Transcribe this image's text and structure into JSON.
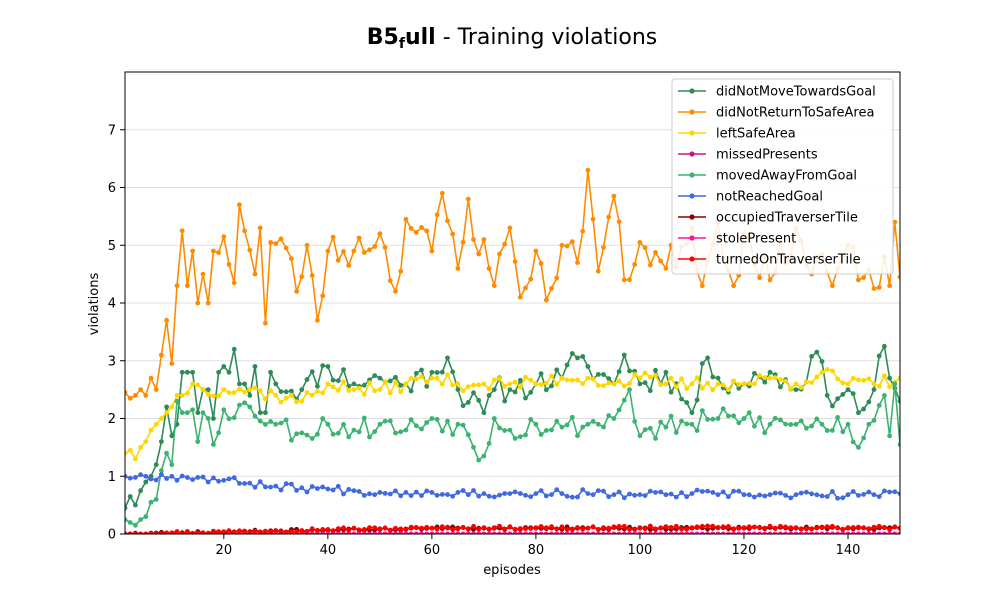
{
  "chart_data": {
    "type": "line",
    "title": {
      "main": "B5",
      "subscript": "f",
      "main_rest": "ull",
      "rest": " - Training violations"
    },
    "xlabel": "episodes",
    "ylabel": "violations",
    "xlim": [
      1,
      150
    ],
    "ylim": [
      0,
      8
    ],
    "xticks": [
      20,
      40,
      60,
      80,
      100,
      120,
      140
    ],
    "yticks": [
      0,
      1,
      2,
      3,
      4,
      5,
      6,
      7
    ],
    "grid": "horizontal",
    "legend_position": "upper right",
    "x_start": 1,
    "x_end": 150,
    "series": [
      {
        "name": "didNotMoveTowardsGoal",
        "color": "#2e8b57",
        "keypoints": [
          [
            1,
            0.45
          ],
          [
            2,
            0.65
          ],
          [
            3,
            0.5
          ],
          [
            4,
            0.75
          ],
          [
            5,
            0.9
          ],
          [
            6,
            1.0
          ],
          [
            7,
            1.2
          ],
          [
            8,
            1.6
          ],
          [
            9,
            2.2
          ],
          [
            10,
            1.7
          ],
          [
            11,
            1.9
          ],
          [
            12,
            2.8
          ],
          [
            13,
            2.8
          ],
          [
            14,
            2.8
          ],
          [
            15,
            2.1
          ],
          [
            16,
            2.5
          ],
          [
            17,
            2.5
          ],
          [
            18,
            2.0
          ],
          [
            19,
            2.8
          ],
          [
            20,
            2.9
          ],
          [
            21,
            2.8
          ],
          [
            22,
            3.2
          ],
          [
            23,
            2.6
          ],
          [
            24,
            2.6
          ],
          [
            25,
            2.4
          ],
          [
            26,
            2.9
          ],
          [
            27,
            2.1
          ],
          [
            28,
            2.1
          ],
          [
            29,
            2.8
          ],
          [
            30,
            2.6
          ],
          [
            35,
            2.5
          ],
          [
            40,
            2.9
          ],
          [
            45,
            2.6
          ],
          [
            50,
            2.7
          ],
          [
            55,
            2.6
          ],
          [
            60,
            2.8
          ],
          [
            63,
            3.05
          ],
          [
            65,
            2.5
          ],
          [
            70,
            2.1
          ],
          [
            72,
            2.5
          ],
          [
            75,
            2.5
          ],
          [
            80,
            2.6
          ],
          [
            85,
            2.7
          ],
          [
            88,
            3.05
          ],
          [
            90,
            2.9
          ],
          [
            95,
            2.6
          ],
          [
            97,
            3.1
          ],
          [
            100,
            2.6
          ],
          [
            105,
            2.8
          ],
          [
            110,
            2.1
          ],
          [
            113,
            3.05
          ],
          [
            115,
            2.7
          ],
          [
            120,
            2.6
          ],
          [
            125,
            2.8
          ],
          [
            130,
            2.5
          ],
          [
            134,
            3.15
          ],
          [
            136,
            2.4
          ],
          [
            140,
            2.5
          ],
          [
            142,
            2.1
          ],
          [
            145,
            2.5
          ],
          [
            147,
            3.25
          ],
          [
            148,
            2.7
          ],
          [
            150,
            2.3
          ]
        ],
        "noise": 0.22,
        "seed": 11
      },
      {
        "name": "didNotReturnToSafeArea",
        "color": "#ff8c00",
        "keypoints": [
          [
            1,
            2.45
          ],
          [
            2,
            2.35
          ],
          [
            3,
            2.4
          ],
          [
            4,
            2.5
          ],
          [
            5,
            2.4
          ],
          [
            6,
            2.7
          ],
          [
            7,
            2.5
          ],
          [
            8,
            3.1
          ],
          [
            9,
            3.7
          ],
          [
            10,
            2.95
          ],
          [
            11,
            4.3
          ],
          [
            12,
            5.25
          ],
          [
            13,
            4.3
          ],
          [
            14,
            4.9
          ],
          [
            15,
            4.0
          ],
          [
            16,
            4.5
          ],
          [
            17,
            4.0
          ],
          [
            18,
            4.9
          ],
          [
            20,
            5.15
          ],
          [
            22,
            4.35
          ],
          [
            23,
            5.7
          ],
          [
            24,
            5.25
          ],
          [
            26,
            4.5
          ],
          [
            27,
            5.3
          ],
          [
            28,
            3.65
          ],
          [
            29,
            5.05
          ],
          [
            32,
            4.95
          ],
          [
            34,
            4.2
          ],
          [
            36,
            5.0
          ],
          [
            38,
            3.7
          ],
          [
            40,
            4.9
          ],
          [
            45,
            4.9
          ],
          [
            50,
            5.2
          ],
          [
            53,
            4.2
          ],
          [
            55,
            5.45
          ],
          [
            60,
            4.9
          ],
          [
            62,
            5.9
          ],
          [
            65,
            4.6
          ],
          [
            67,
            5.8
          ],
          [
            68,
            5.1
          ],
          [
            70,
            5.1
          ],
          [
            72,
            4.3
          ],
          [
            75,
            5.3
          ],
          [
            77,
            4.1
          ],
          [
            80,
            4.9
          ],
          [
            82,
            4.05
          ],
          [
            85,
            5.0
          ],
          [
            88,
            4.7
          ],
          [
            90,
            6.3
          ],
          [
            92,
            4.55
          ],
          [
            95,
            5.85
          ],
          [
            97,
            4.4
          ],
          [
            100,
            5.05
          ],
          [
            105,
            4.6
          ],
          [
            110,
            5.3
          ],
          [
            112,
            4.3
          ],
          [
            115,
            5.4
          ],
          [
            118,
            4.3
          ],
          [
            120,
            5.2
          ],
          [
            125,
            4.4
          ],
          [
            130,
            5.3
          ],
          [
            133,
            4.5
          ],
          [
            135,
            4.85
          ],
          [
            137,
            4.3
          ],
          [
            140,
            5.0
          ],
          [
            142,
            4.4
          ],
          [
            145,
            4.25
          ],
          [
            147,
            4.8
          ],
          [
            148,
            4.3
          ],
          [
            149,
            5.4
          ],
          [
            150,
            4.45
          ]
        ],
        "noise": 0.3,
        "seed": 23
      },
      {
        "name": "leftSafeArea",
        "color": "#ffd700",
        "keypoints": [
          [
            1,
            1.4
          ],
          [
            2,
            1.45
          ],
          [
            3,
            1.3
          ],
          [
            4,
            1.5
          ],
          [
            5,
            1.6
          ],
          [
            6,
            1.8
          ],
          [
            7,
            1.9
          ],
          [
            8,
            2.0
          ],
          [
            9,
            2.1
          ],
          [
            10,
            2.2
          ],
          [
            11,
            2.4
          ],
          [
            12,
            2.4
          ],
          [
            14,
            2.6
          ],
          [
            16,
            2.5
          ],
          [
            20,
            2.5
          ],
          [
            25,
            2.5
          ],
          [
            30,
            2.4
          ],
          [
            35,
            2.3
          ],
          [
            40,
            2.6
          ],
          [
            45,
            2.5
          ],
          [
            50,
            2.5
          ],
          [
            55,
            2.6
          ],
          [
            60,
            2.7
          ],
          [
            65,
            2.6
          ],
          [
            70,
            2.6
          ],
          [
            75,
            2.6
          ],
          [
            80,
            2.6
          ],
          [
            85,
            2.7
          ],
          [
            90,
            2.7
          ],
          [
            95,
            2.6
          ],
          [
            100,
            2.7
          ],
          [
            105,
            2.6
          ],
          [
            110,
            2.6
          ],
          [
            115,
            2.6
          ],
          [
            120,
            2.6
          ],
          [
            125,
            2.7
          ],
          [
            130,
            2.6
          ],
          [
            135,
            2.8
          ],
          [
            140,
            2.6
          ],
          [
            145,
            2.6
          ],
          [
            150,
            2.7
          ]
        ],
        "noise": 0.12,
        "seed": 37
      },
      {
        "name": "missedPresents",
        "color": "#c71585",
        "keypoints": [
          [
            1,
            0.0
          ],
          [
            150,
            0.0
          ]
        ],
        "noise": 0.0,
        "seed": 41
      },
      {
        "name": "movedAwayFromGoal",
        "color": "#3cb371",
        "keypoints": [
          [
            1,
            0.25
          ],
          [
            2,
            0.2
          ],
          [
            3,
            0.15
          ],
          [
            4,
            0.25
          ],
          [
            5,
            0.3
          ],
          [
            6,
            0.55
          ],
          [
            7,
            0.6
          ],
          [
            8,
            1.1
          ],
          [
            9,
            1.4
          ],
          [
            10,
            1.2
          ],
          [
            11,
            2.3
          ],
          [
            12,
            2.1
          ],
          [
            13,
            2.1
          ],
          [
            14,
            2.15
          ],
          [
            15,
            1.6
          ],
          [
            16,
            2.1
          ],
          [
            17,
            2.0
          ],
          [
            18,
            1.55
          ],
          [
            20,
            2.15
          ],
          [
            25,
            2.2
          ],
          [
            30,
            1.9
          ],
          [
            35,
            1.75
          ],
          [
            40,
            1.9
          ],
          [
            45,
            1.8
          ],
          [
            50,
            1.9
          ],
          [
            55,
            1.8
          ],
          [
            60,
            2.0
          ],
          [
            65,
            1.9
          ],
          [
            70,
            1.35
          ],
          [
            72,
            2.0
          ],
          [
            75,
            1.8
          ],
          [
            80,
            1.9
          ],
          [
            85,
            1.85
          ],
          [
            90,
            1.9
          ],
          [
            95,
            2.0
          ],
          [
            98,
            2.5
          ],
          [
            100,
            1.7
          ],
          [
            105,
            1.85
          ],
          [
            110,
            1.9
          ],
          [
            115,
            2.0
          ],
          [
            120,
            2.0
          ],
          [
            125,
            1.9
          ],
          [
            130,
            1.9
          ],
          [
            135,
            1.9
          ],
          [
            140,
            1.9
          ],
          [
            142,
            1.5
          ],
          [
            144,
            1.9
          ],
          [
            147,
            2.4
          ],
          [
            148,
            1.7
          ],
          [
            149,
            2.6
          ],
          [
            150,
            1.55
          ]
        ],
        "noise": 0.2,
        "seed": 53
      },
      {
        "name": "notReachedGoal",
        "color": "#4169e1",
        "keypoints": [
          [
            1,
            1.0
          ],
          [
            5,
            1.0
          ],
          [
            10,
            1.0
          ],
          [
            15,
            0.98
          ],
          [
            20,
            0.93
          ],
          [
            25,
            0.88
          ],
          [
            30,
            0.83
          ],
          [
            35,
            0.8
          ],
          [
            40,
            0.78
          ],
          [
            45,
            0.75
          ],
          [
            50,
            0.72
          ],
          [
            55,
            0.72
          ],
          [
            60,
            0.72
          ],
          [
            65,
            0.72
          ],
          [
            70,
            0.7
          ],
          [
            75,
            0.7
          ],
          [
            80,
            0.7
          ],
          [
            85,
            0.7
          ],
          [
            90,
            0.7
          ],
          [
            95,
            0.68
          ],
          [
            100,
            0.68
          ],
          [
            105,
            0.68
          ],
          [
            110,
            0.7
          ],
          [
            115,
            0.68
          ],
          [
            120,
            0.68
          ],
          [
            125,
            0.68
          ],
          [
            130,
            0.68
          ],
          [
            135,
            0.66
          ],
          [
            140,
            0.68
          ],
          [
            145,
            0.68
          ],
          [
            150,
            0.7
          ]
        ],
        "noise": 0.07,
        "seed": 67
      },
      {
        "name": "occupiedTraverserTile",
        "color": "#8b0000",
        "keypoints": [
          [
            1,
            0.0
          ],
          [
            10,
            0.01
          ],
          [
            20,
            0.03
          ],
          [
            30,
            0.05
          ],
          [
            40,
            0.07
          ],
          [
            50,
            0.08
          ],
          [
            60,
            0.1
          ],
          [
            70,
            0.1
          ],
          [
            80,
            0.1
          ],
          [
            90,
            0.1
          ],
          [
            100,
            0.1
          ],
          [
            110,
            0.1
          ],
          [
            120,
            0.1
          ],
          [
            130,
            0.1
          ],
          [
            140,
            0.1
          ],
          [
            150,
            0.1
          ]
        ],
        "noise": 0.025,
        "seed": 71
      },
      {
        "name": "stolePresent",
        "color": "#ff1493",
        "keypoints": [
          [
            1,
            0.0
          ],
          [
            150,
            0.0
          ]
        ],
        "noise": 0.0,
        "seed": 83
      },
      {
        "name": "turnedOnTraverserTile",
        "color": "#ff0000",
        "keypoints": [
          [
            1,
            0.0
          ],
          [
            10,
            0.02
          ],
          [
            20,
            0.04
          ],
          [
            30,
            0.06
          ],
          [
            40,
            0.08
          ],
          [
            50,
            0.09
          ],
          [
            60,
            0.1
          ],
          [
            70,
            0.11
          ],
          [
            80,
            0.11
          ],
          [
            90,
            0.1
          ],
          [
            100,
            0.11
          ],
          [
            110,
            0.11
          ],
          [
            120,
            0.11
          ],
          [
            130,
            0.11
          ],
          [
            140,
            0.11
          ],
          [
            150,
            0.1
          ]
        ],
        "noise": 0.03,
        "seed": 97
      }
    ]
  }
}
